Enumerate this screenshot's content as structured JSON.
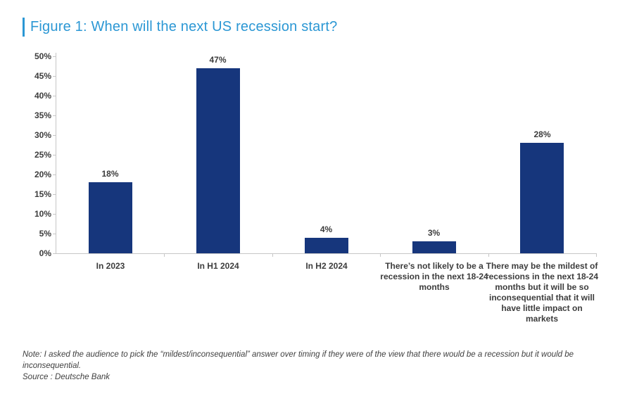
{
  "figure": {
    "title": "Figure 1: When will the next US recession start?",
    "note": "Note: I asked the audience to pick the “mildest/inconsequential” answer over timing if they were of the view that there would be a recession but it would be inconsequential.",
    "source": "Source : Deutsche Bank"
  },
  "colors": {
    "title_blue": "#2b97d4",
    "bar_navy": "#16367c",
    "axis_gray": "#c6c6c6",
    "label_dark": "#3c3c3c"
  },
  "chart_data": {
    "type": "bar",
    "title": "When will the next US recession start?",
    "categories": [
      "In 2023",
      "In H1 2024",
      "In H2 2024",
      "There’s not likely to be a recession in the next 18-24 months",
      "There may be the mildest of recessions in the next 18-24 months but it will be so inconsequential that it will have little impact on markets"
    ],
    "values": [
      18,
      47,
      4,
      3,
      28
    ],
    "value_labels": [
      "18%",
      "47%",
      "4%",
      "3%",
      "28%"
    ],
    "xlabel": "",
    "ylabel": "",
    "ylim": [
      0,
      50
    ],
    "ytick_step": 5,
    "ytick_labels": [
      "0%",
      "5%",
      "10%",
      "15%",
      "20%",
      "25%",
      "30%",
      "35%",
      "40%",
      "45%",
      "50%"
    ],
    "grid": false,
    "legend_position": "none",
    "bar_color": "#16367c"
  }
}
